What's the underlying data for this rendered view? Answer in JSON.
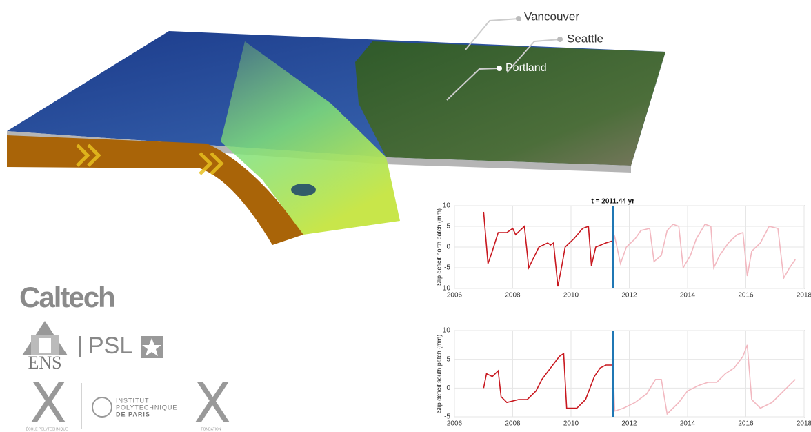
{
  "places": [
    "Vancouver",
    "Seattle",
    "Portland"
  ],
  "logos": {
    "caltech": "Caltech",
    "ens": "ENS",
    "psl": "PSL",
    "ecole": "ÉCOLE POLYTECHNIQUE",
    "ipp": [
      "INSTITUT",
      "POLYTECHNIQUE",
      "DE PARIS"
    ],
    "fondation": "FONDATION"
  },
  "chart_data": [
    {
      "type": "line",
      "title": "t = 2011.44 yr",
      "y_label": "Slip deficit north patch (mm)",
      "xlim": [
        2006,
        2018
      ],
      "xticks": [
        2006,
        2008,
        2010,
        2012,
        2014,
        2016,
        2018
      ],
      "ylim": [
        -10,
        10
      ],
      "yticks": [
        -10,
        -5,
        0,
        5,
        10
      ],
      "grid": true,
      "marker_x": 2011.44,
      "marker_color": "#1f77b4",
      "series": [
        {
          "color": "#c8171e",
          "x": [
            2007.0,
            2007.15,
            2007.3,
            2007.5,
            2007.8,
            2008.0,
            2008.1,
            2008.4,
            2008.55,
            2008.9,
            2009.2,
            2009.3,
            2009.4,
            2009.55,
            2009.7,
            2009.8,
            2010.1,
            2010.4,
            2010.6,
            2010.7,
            2010.85,
            2011.2,
            2011.44
          ],
          "values": [
            8.5,
            -4,
            -1,
            3.5,
            3.5,
            4.5,
            3,
            5,
            -5,
            0,
            1,
            0.5,
            1,
            -9.5,
            -4,
            0,
            2,
            4.5,
            5,
            -4.5,
            0,
            1,
            1.5
          ]
        },
        {
          "color": "#f2b8c0",
          "x": [
            2011.44,
            2011.5,
            2011.7,
            2011.9,
            2012.2,
            2012.4,
            2012.7,
            2012.85,
            2013.1,
            2013.3,
            2013.5,
            2013.7,
            2013.85,
            2014.1,
            2014.3,
            2014.6,
            2014.8,
            2014.9,
            2015.1,
            2015.4,
            2015.7,
            2015.9,
            2016.05,
            2016.2,
            2016.5,
            2016.8,
            2017.1,
            2017.3,
            2017.5,
            2017.7
          ],
          "values": [
            1.5,
            2.5,
            -4,
            0,
            2,
            4,
            4.5,
            -3.5,
            -2,
            4,
            5.5,
            5,
            -5,
            -2,
            2,
            5.5,
            5,
            -5,
            -2,
            1,
            3,
            3.5,
            -7,
            -1,
            1,
            5,
            4.5,
            -7.5,
            -5,
            -3
          ]
        }
      ]
    },
    {
      "type": "line",
      "y_label": "Slip deficit south patch (mm)",
      "xlim": [
        2006,
        2018
      ],
      "xticks": [
        2006,
        2008,
        2010,
        2012,
        2014,
        2016,
        2018
      ],
      "ylim": [
        -5,
        10
      ],
      "yticks": [
        -5,
        0,
        5,
        10
      ],
      "grid": true,
      "marker_x": 2011.44,
      "marker_color": "#1f77b4",
      "series": [
        {
          "color": "#c8171e",
          "x": [
            2007.0,
            2007.1,
            2007.3,
            2007.5,
            2007.6,
            2007.8,
            2008.2,
            2008.5,
            2008.8,
            2009.0,
            2009.3,
            2009.6,
            2009.75,
            2009.85,
            2010.2,
            2010.5,
            2010.8,
            2011.0,
            2011.2,
            2011.44
          ],
          "values": [
            0,
            2.5,
            2,
            3,
            -1.5,
            -2.5,
            -2,
            -2,
            -0.5,
            1.5,
            3.5,
            5.5,
            6,
            -3.5,
            -3.5,
            -2,
            2,
            3.5,
            4,
            4
          ]
        },
        {
          "color": "#f2b8c0",
          "x": [
            2011.44,
            2011.5,
            2011.8,
            2012.2,
            2012.6,
            2012.9,
            2013.1,
            2013.3,
            2013.7,
            2014.0,
            2014.4,
            2014.7,
            2015.0,
            2015.3,
            2015.6,
            2015.9,
            2016.05,
            2016.2,
            2016.5,
            2016.9,
            2017.3,
            2017.7
          ],
          "values": [
            4,
            -4,
            -3.5,
            -2.5,
            -1,
            1.5,
            1.5,
            -4.5,
            -2.5,
            -0.5,
            0.5,
            1,
            1,
            2.5,
            3.5,
            5.5,
            7.5,
            -2,
            -3.5,
            -2.5,
            -0.5,
            1.5
          ]
        }
      ]
    }
  ]
}
